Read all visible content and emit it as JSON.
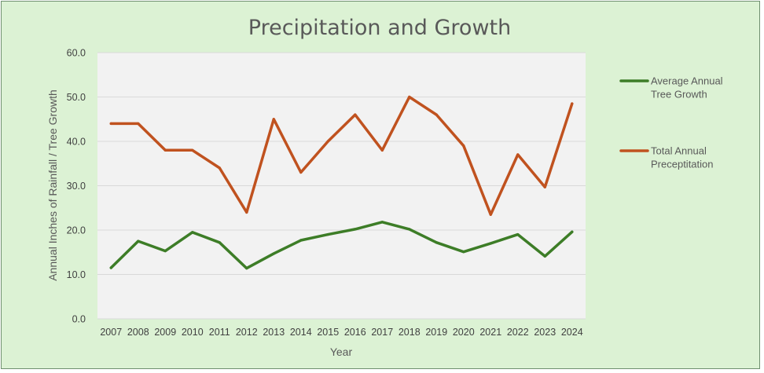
{
  "chart_data": {
    "type": "line",
    "title": "Precipitation and Growth",
    "xlabel": "Year",
    "ylabel": "Annual Inches of Rainfall / Tree Growth",
    "categories": [
      "2007",
      "2008",
      "2009",
      "2010",
      "2011",
      "2012",
      "2013",
      "2014",
      "2015",
      "2016",
      "2017",
      "2018",
      "2019",
      "2020",
      "2021",
      "2022",
      "2023",
      "2024"
    ],
    "ylim": [
      0,
      60
    ],
    "yticks": [
      "0.0",
      "10.0",
      "20.0",
      "30.0",
      "40.0",
      "50.0",
      "60.0"
    ],
    "grid": true,
    "legend_position": "right",
    "series": [
      {
        "name": "Average Annual Tree Growth",
        "legend_lines": [
          "Average Annual",
          "Tree Growth"
        ],
        "color": "#3d7d27",
        "values": [
          11.5,
          17.5,
          15.3,
          19.5,
          17.2,
          11.4,
          14.7,
          17.7,
          19.0,
          20.2,
          21.8,
          20.2,
          17.2,
          15.1,
          17.0,
          19.0,
          14.1,
          19.6
        ]
      },
      {
        "name": "Total Annual Preceptitation",
        "legend_lines": [
          "Total Annual",
          "Preceptitation"
        ],
        "color": "#c0521f",
        "values": [
          44.0,
          44.0,
          38.0,
          38.0,
          34.0,
          24.0,
          45.0,
          33.0,
          40.0,
          46.0,
          38.0,
          50.0,
          46.0,
          39.0,
          23.5,
          37.0,
          29.7,
          48.5
        ]
      }
    ]
  }
}
